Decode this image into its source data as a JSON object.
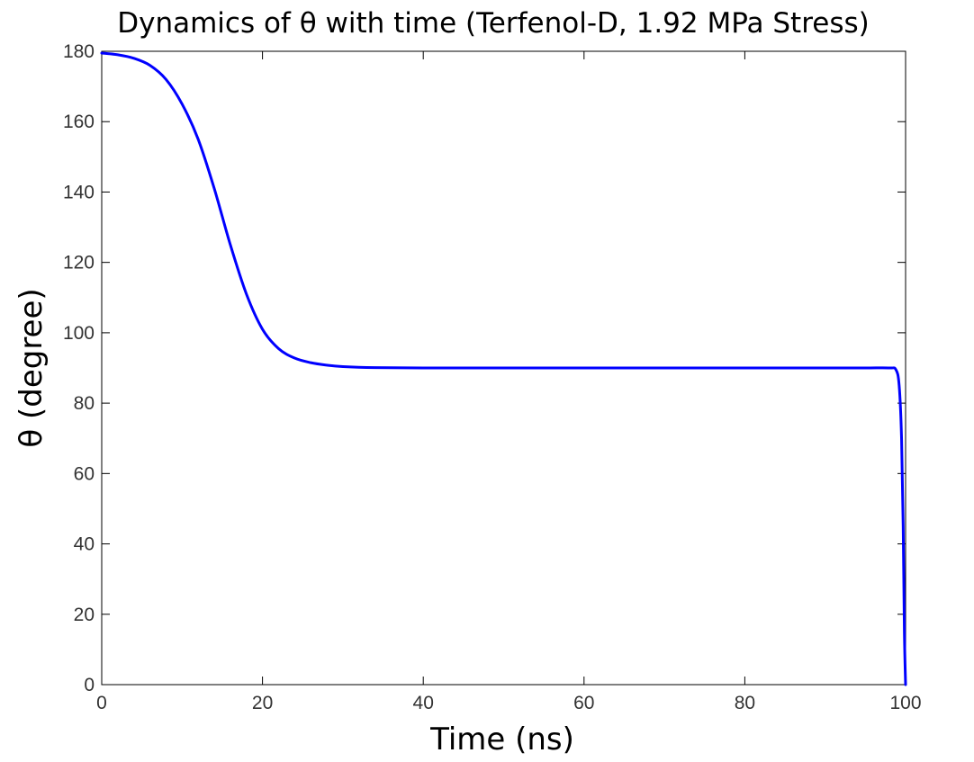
{
  "chart_data": {
    "type": "line",
    "title": "Dynamics of θ with time (Terfenol-D, 1.92 MPa Stress)",
    "xlabel": "Time (ns)",
    "ylabel": "θ (degree)",
    "xlim": [
      0,
      100
    ],
    "ylim": [
      0,
      180
    ],
    "xticks": [
      0,
      20,
      40,
      60,
      80,
      100
    ],
    "yticks": [
      0,
      20,
      40,
      60,
      80,
      100,
      120,
      140,
      160,
      180
    ],
    "grid": false,
    "legend": "none",
    "series": [
      {
        "color": "#0000ff",
        "x": [
          0,
          2,
          4,
          6,
          8,
          10,
          12,
          14,
          16,
          18,
          20,
          22,
          24,
          26,
          28,
          30,
          34,
          40,
          50,
          60,
          70,
          80,
          90,
          95,
          98,
          98.8,
          99.2,
          99.5,
          99.7,
          99.85,
          100
        ],
        "y": [
          179.5,
          179,
          178,
          176,
          172,
          165,
          155,
          141,
          125,
          111,
          101,
          95.5,
          92.8,
          91.5,
          90.8,
          90.4,
          90.1,
          90,
          90,
          90,
          90,
          90,
          90,
          90,
          90,
          89.5,
          85,
          70,
          45,
          15,
          0
        ]
      }
    ]
  }
}
